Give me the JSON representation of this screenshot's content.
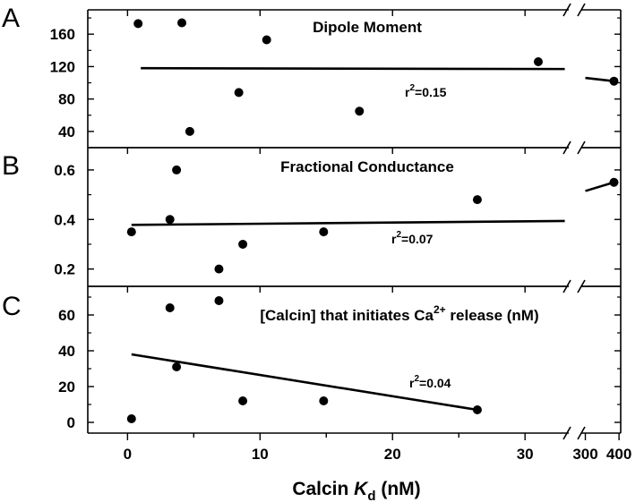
{
  "chart_data": [
    {
      "type": "scatter",
      "panel": "A",
      "title": "Dipole Moment",
      "r2_label": "r2=0.15",
      "r2_main": "r",
      "r2_sup": "2",
      "r2_rest": "=0.15",
      "ylim": [
        20,
        190
      ],
      "yticks": [
        40,
        80,
        120,
        160
      ],
      "points": [
        {
          "x": 0.8,
          "y": 173
        },
        {
          "x": 4.1,
          "y": 174
        },
        {
          "x": 4.7,
          "y": 40
        },
        {
          "x": 8.4,
          "y": 88
        },
        {
          "x": 10.5,
          "y": 153
        },
        {
          "x": 17.5,
          "y": 65
        },
        {
          "x": 31.0,
          "y": 126
        },
        {
          "x": 385,
          "y": 102
        }
      ],
      "fit_left": [
        {
          "x": 1.0,
          "y": 118
        },
        {
          "x": 33.0,
          "y": 117
        }
      ],
      "fit_right": [
        {
          "x": 300,
          "y": 106
        },
        {
          "x": 385,
          "y": 102
        }
      ]
    },
    {
      "type": "scatter",
      "panel": "B",
      "title": "Fractional Conductance",
      "r2_main": "r",
      "r2_sup": "2",
      "r2_rest": "=0.07",
      "ylim": [
        0.13,
        0.69
      ],
      "yticks": [
        0.2,
        0.4,
        0.6
      ],
      "points": [
        {
          "x": 0.3,
          "y": 0.35
        },
        {
          "x": 3.2,
          "y": 0.4
        },
        {
          "x": 3.7,
          "y": 0.6
        },
        {
          "x": 6.9,
          "y": 0.2
        },
        {
          "x": 8.7,
          "y": 0.3
        },
        {
          "x": 14.8,
          "y": 0.35
        },
        {
          "x": 26.4,
          "y": 0.48
        },
        {
          "x": 385,
          "y": 0.55
        }
      ],
      "fit_left": [
        {
          "x": 0.3,
          "y": 0.378
        },
        {
          "x": 33.0,
          "y": 0.394
        }
      ],
      "fit_right": [
        {
          "x": 300,
          "y": 0.515
        },
        {
          "x": 385,
          "y": 0.55
        }
      ]
    },
    {
      "type": "scatter",
      "panel": "C",
      "title_main": "[Calcin] that initiates Ca",
      "title_sup": "2+",
      "title_rest": " release (nM)",
      "r2_main": "r",
      "r2_sup": "2",
      "r2_rest": "=0.04",
      "ylim": [
        -6,
        76
      ],
      "yticks": [
        0,
        20,
        40,
        60
      ],
      "points": [
        {
          "x": 0.3,
          "y": 2
        },
        {
          "x": 3.2,
          "y": 64
        },
        {
          "x": 3.7,
          "y": 31
        },
        {
          "x": 6.9,
          "y": 68
        },
        {
          "x": 8.7,
          "y": 12
        },
        {
          "x": 14.8,
          "y": 12
        },
        {
          "x": 26.4,
          "y": 7
        }
      ],
      "fit_left": [
        {
          "x": 0.3,
          "y": 38
        },
        {
          "x": 26.4,
          "y": 7
        }
      ],
      "fit_right": []
    }
  ],
  "x_axis": {
    "label_main": "Calcin ",
    "label_italic": "K",
    "label_sub": "d",
    "label_rest": " (nM)",
    "left_segment": {
      "range": [
        -3,
        33.3
      ],
      "ticks": [
        0,
        10,
        20,
        30
      ]
    },
    "right_segment": {
      "range": [
        288,
        405
      ],
      "ticks": [
        300,
        400
      ]
    },
    "break_between": [
      33.3,
      288
    ]
  }
}
